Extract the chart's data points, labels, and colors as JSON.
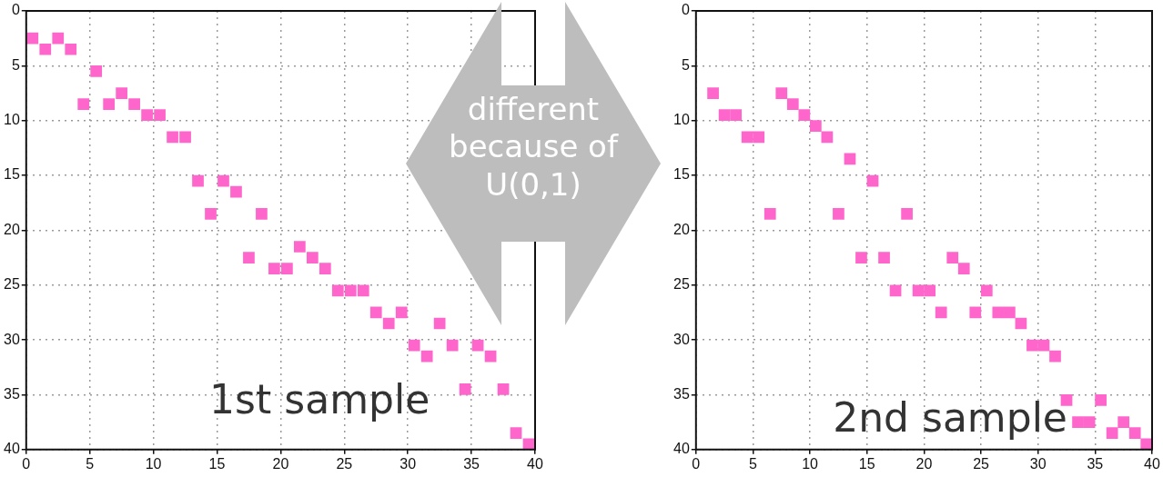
{
  "chart_data": [
    {
      "type": "scatter",
      "color": "#ff66cc",
      "marker": "square",
      "grid": true,
      "xlim": [
        0,
        40
      ],
      "ylim": [
        40,
        0
      ],
      "xticks": [
        0,
        5,
        10,
        15,
        20,
        25,
        30,
        35,
        40
      ],
      "yticks": [
        0,
        5,
        10,
        15,
        20,
        25,
        30,
        35,
        40
      ],
      "x": [
        0.5,
        1.5,
        2.5,
        3.5,
        4.5,
        5.5,
        6.5,
        7.5,
        8.5,
        9.5,
        10.5,
        11.5,
        12.5,
        13.5,
        14.5,
        15.5,
        16.5,
        17.5,
        18.5,
        19.5,
        20.5,
        21.5,
        22.5,
        23.5,
        24.5,
        25.5,
        26.5,
        27.5,
        28.5,
        29.5,
        30.5,
        31.5,
        32.5,
        33.5,
        34.5,
        35.5,
        36.5,
        37.5,
        38.5,
        39.5
      ],
      "values": [
        2.5,
        3.5,
        2.5,
        3.5,
        8.5,
        5.5,
        8.5,
        7.5,
        8.5,
        9.5,
        9.5,
        11.5,
        11.5,
        15.5,
        18.5,
        15.5,
        16.5,
        22.5,
        18.5,
        23.5,
        23.5,
        21.5,
        22.5,
        23.5,
        25.5,
        25.5,
        25.5,
        27.5,
        28.5,
        27.5,
        30.5,
        31.5,
        28.5,
        30.5,
        34.5,
        30.5,
        31.5,
        34.5,
        38.5,
        39.5
      ],
      "annotations": [
        "1st sample",
        "different because of U(0,1)"
      ]
    },
    {
      "type": "scatter",
      "color": "#ff66cc",
      "marker": "square",
      "grid": true,
      "xlim": [
        0,
        40
      ],
      "ylim": [
        40,
        0
      ],
      "xticks": [
        0,
        5,
        10,
        15,
        20,
        25,
        30,
        35,
        40
      ],
      "yticks": [
        0,
        5,
        10,
        15,
        20,
        25,
        30,
        35,
        40
      ],
      "x": [
        1.5,
        2.5,
        3.5,
        4.5,
        5.5,
        6.5,
        7.5,
        8.5,
        9.5,
        10.5,
        11.5,
        12.5,
        13.5,
        14.5,
        15.5,
        16.5,
        17.5,
        18.5,
        19.5,
        20.5,
        21.5,
        22.5,
        23.5,
        24.5,
        25.5,
        26.5,
        27.5,
        28.5,
        29.5,
        30.5,
        31.5,
        32.5,
        33.5,
        34.5,
        35.5,
        36.5,
        37.5,
        38.5,
        39.5
      ],
      "values": [
        7.5,
        9.5,
        9.5,
        11.5,
        11.5,
        18.5,
        7.5,
        8.5,
        9.5,
        10.5,
        11.5,
        18.5,
        13.5,
        22.5,
        15.5,
        22.5,
        25.5,
        18.5,
        25.5,
        25.5,
        27.5,
        22.5,
        23.5,
        27.5,
        25.5,
        27.5,
        27.5,
        28.5,
        30.5,
        30.5,
        31.5,
        35.5,
        37.5,
        37.5,
        35.5,
        38.5,
        37.5,
        38.5,
        39.5
      ],
      "annotations": [
        "2nd sample"
      ]
    }
  ]
}
